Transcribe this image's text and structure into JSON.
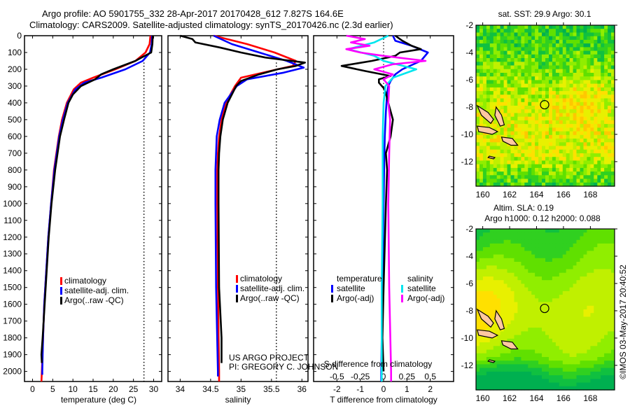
{
  "header": {
    "line1": "Argo profile: AO 5901755_332 28-Apr-2017 20170428_612 7.827S 164.6E",
    "line2": "Climatology: CARS2009. Satellite-adjusted climatology: synTS_20170426.nc (2.3d earlier)"
  },
  "colors": {
    "climatology": "#ff0000",
    "satellite_adj": "#0000ff",
    "argo": "#000000",
    "salinity_satellite": "#00e5ee",
    "salinity_argo": "#ff00ff",
    "land": "#ffc8a0"
  },
  "credits": {
    "line1": "US ARGO PROJECT",
    "line2": "PI: GREGORY C. JOHNSON",
    "timestamp": "©IMOS 03-May-2017 20:40:52"
  },
  "chart_data": [
    {
      "id": "temperature",
      "type": "line",
      "xlabel": "temperature (deg C)",
      "ylabel": "",
      "xlim": [
        -2,
        32
      ],
      "ylim": [
        2060,
        0
      ],
      "xticks": [
        0,
        5,
        10,
        15,
        20,
        25,
        30
      ],
      "yticks": [
        0,
        100,
        200,
        300,
        400,
        500,
        600,
        700,
        800,
        900,
        1000,
        1100,
        1200,
        1300,
        1400,
        1500,
        1600,
        1700,
        1800,
        1900,
        2000
      ],
      "reference_x": 27.6,
      "legend": [
        "climatology",
        "satellite-adj. clim.",
        "Argo(..raw -QC)"
      ],
      "legend_position": "lower-center",
      "series": [
        {
          "name": "climatology",
          "color_key": "climatology",
          "depth": [
            0,
            50,
            100,
            150,
            200,
            250,
            280,
            320,
            400,
            500,
            600,
            800,
            1000,
            1200,
            1400,
            1600,
            1800,
            2000,
            2060
          ],
          "values": [
            29.2,
            29.0,
            28.0,
            25.5,
            20.5,
            15.0,
            12.0,
            10.2,
            8.5,
            7.3,
            6.5,
            5.3,
            4.6,
            3.9,
            3.4,
            2.9,
            2.6,
            2.3,
            2.2
          ]
        },
        {
          "name": "satellite-adj. clim.",
          "color_key": "satellite_adj",
          "depth": [
            0,
            50,
            100,
            150,
            200,
            250,
            280,
            320,
            400,
            500,
            600,
            800,
            1000,
            1200,
            1400,
            1600,
            1800,
            2000,
            2020
          ],
          "values": [
            29.6,
            29.5,
            29.1,
            27.3,
            23.0,
            17.0,
            12.8,
            10.6,
            8.7,
            7.5,
            6.6,
            5.4,
            4.6,
            3.9,
            3.4,
            2.9,
            2.6,
            2.4,
            2.4
          ]
        },
        {
          "name": "Argo(..raw -QC)",
          "color_key": "argo",
          "depth": [
            0,
            50,
            100,
            130,
            150,
            200,
            230,
            260,
            300,
            350,
            400,
            500,
            600,
            800,
            1000,
            1200,
            1400,
            1600,
            1800,
            1900,
            1950
          ],
          "values": [
            29.8,
            29.7,
            29.4,
            27.0,
            25.5,
            20.0,
            17.0,
            15.5,
            12.0,
            10.0,
            8.9,
            7.8,
            6.8,
            5.6,
            4.7,
            4.0,
            3.5,
            3.0,
            2.5,
            2.2,
            2.3
          ]
        }
      ]
    },
    {
      "id": "salinity",
      "type": "line",
      "xlabel": "salinity",
      "ylabel": "",
      "xlim": [
        33.8,
        36.1
      ],
      "ylim": [
        2060,
        0
      ],
      "xticks": [
        34,
        34.5,
        35,
        35.5,
        36
      ],
      "reference_x": 35.58,
      "legend": [
        "climatology",
        "satellite-adj. clim.",
        "Argo(..raw -QC)"
      ],
      "legend_position": "lower-center",
      "series": [
        {
          "name": "climatology",
          "color_key": "climatology",
          "depth": [
            0,
            50,
            100,
            150,
            180,
            200,
            250,
            300,
            400,
            500,
            600,
            700,
            800,
            1000,
            1500,
            2000,
            2060
          ],
          "values": [
            34.55,
            35.1,
            35.55,
            35.9,
            35.85,
            35.6,
            35.0,
            34.9,
            34.75,
            34.68,
            34.64,
            34.62,
            34.61,
            34.61,
            34.62,
            34.64,
            34.64
          ]
        },
        {
          "name": "satellite-adj. clim.",
          "color_key": "satellite_adj",
          "depth": [
            0,
            50,
            100,
            150,
            190,
            220,
            260,
            300,
            400,
            500,
            600,
            700,
            800,
            1000,
            1500,
            2000,
            2030
          ],
          "values": [
            34.55,
            34.85,
            35.3,
            35.75,
            36.03,
            35.7,
            35.1,
            34.93,
            34.73,
            34.65,
            34.6,
            34.59,
            34.58,
            34.58,
            34.59,
            34.62,
            34.62
          ]
        },
        {
          "name": "Argo(..raw -QC)",
          "color_key": "argo",
          "depth": [
            0,
            20,
            40,
            70,
            100,
            130,
            160,
            180,
            200,
            230,
            270,
            300,
            400,
            500,
            600,
            700,
            800,
            1000,
            1500,
            1800,
            1950
          ],
          "values": [
            34.0,
            34.2,
            34.25,
            34.65,
            35.0,
            35.4,
            36.05,
            35.9,
            35.6,
            35.3,
            35.0,
            34.92,
            34.78,
            34.7,
            34.66,
            34.64,
            34.63,
            34.63,
            34.64,
            34.68,
            34.68
          ]
        }
      ]
    },
    {
      "id": "difference",
      "type": "line",
      "xlabel": "T difference from climatology",
      "xlabel_top": "S difference from climatology",
      "xlim": [
        -3,
        3
      ],
      "ylim": [
        2060,
        0
      ],
      "xticks": [
        -2,
        -1,
        0,
        1,
        2
      ],
      "xticks_s": [
        -0.5,
        -0.25,
        0,
        0.25,
        0.5
      ],
      "xtick_s_labels": [
        "-0.5",
        "-0.25",
        "0",
        "0.25",
        "0.5"
      ],
      "legend_temperature_title": "temperature",
      "legend_salinity_title": "salinity",
      "legend": [
        "satellite",
        "Argo(-adj)",
        "satellite",
        "Argo(-adj)"
      ],
      "legend_position": "lower-center",
      "series": [
        {
          "name": "temperature satellite",
          "color_key": "satellite_adj",
          "units": "T",
          "depth": [
            0,
            30,
            60,
            100,
            150,
            200,
            230,
            270,
            300,
            350,
            450,
            600,
            800,
            1000,
            1500,
            2000,
            2060
          ],
          "values": [
            0.4,
            0.5,
            1.2,
            1.9,
            1.6,
            0.8,
            0.5,
            0.3,
            0.2,
            0.15,
            0.1,
            0.05,
            0.02,
            0.0,
            -0.05,
            -0.1,
            -0.1
          ]
        },
        {
          "name": "temperature Argo(-adj)",
          "color_key": "argo",
          "units": "T",
          "depth": [
            0,
            30,
            60,
            80,
            100,
            120,
            150,
            180,
            210,
            240,
            260,
            280,
            320,
            400,
            500,
            600,
            700,
            800,
            1000,
            1500,
            1800,
            2000
          ],
          "values": [
            0.5,
            0.8,
            1.2,
            1.6,
            0.7,
            0.5,
            -0.5,
            -1.8,
            -0.8,
            0.3,
            -0.2,
            -0.2,
            0.05,
            0.2,
            0.4,
            0.3,
            0.1,
            0.15,
            0.1,
            0.0,
            -0.05,
            0.0
          ]
        },
        {
          "name": "salinity satellite",
          "color_key": "salinity_satellite",
          "units": "S",
          "depth": [
            0,
            40,
            80,
            120,
            150,
            200,
            250,
            300,
            400,
            600,
            1000,
            1500,
            2000,
            2060
          ],
          "values": [
            0.05,
            -0.1,
            -0.38,
            -0.1,
            0.0,
            0.35,
            0.1,
            0.02,
            0.0,
            -0.01,
            -0.01,
            -0.02,
            -0.02,
            -0.02
          ]
        },
        {
          "name": "salinity Argo(-adj)",
          "color_key": "salinity_argo",
          "units": "S",
          "depth": [
            0,
            20,
            40,
            60,
            80,
            100,
            120,
            150,
            170,
            200,
            230,
            260,
            300,
            400,
            500,
            700,
            1000,
            1500,
            2000,
            2060
          ],
          "values": [
            -0.4,
            -0.2,
            -0.35,
            -0.15,
            -0.4,
            -0.25,
            0.0,
            0.45,
            0.1,
            -0.1,
            0.1,
            0.0,
            0.06,
            0.05,
            0.07,
            0.06,
            0.05,
            0.06,
            0.08,
            0.08
          ]
        }
      ]
    },
    {
      "id": "sst-map",
      "type": "heatmap",
      "title": "sat. SST: 29.9 Argo: 30.1",
      "xlim": [
        159.5,
        169.8
      ],
      "ylim": [
        -13.8,
        -2
      ],
      "xticks": [
        160,
        162,
        164,
        166,
        168
      ],
      "yticks": [
        -2,
        -4,
        -6,
        -8,
        -10,
        -12
      ],
      "argo_position": {
        "lon": 164.6,
        "lat": -7.827
      },
      "colormap": "green-yellow-orange"
    },
    {
      "id": "sla-map",
      "type": "heatmap",
      "title": "Altim. SLA: 0.19",
      "subtitle": "Argo h1000: 0.12 h2000: 0.088",
      "xlim": [
        159.5,
        169.8
      ],
      "ylim": [
        -13.8,
        -2
      ],
      "xticks": [
        160,
        162,
        164,
        166,
        168
      ],
      "yticks": [
        -2,
        -4,
        -6,
        -8,
        -10,
        -12
      ],
      "argo_position": {
        "lon": 164.6,
        "lat": -7.827
      },
      "colormap": "green-yellow-orange"
    }
  ]
}
